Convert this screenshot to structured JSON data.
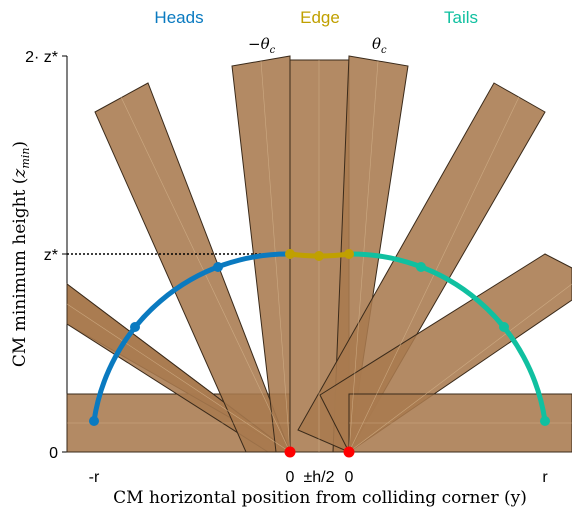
{
  "legend": {
    "heads": {
      "label": "Heads",
      "color": "#0a7ac0"
    },
    "edge": {
      "label": "Edge",
      "color": "#c0a000"
    },
    "tails": {
      "label": "Tails",
      "color": "#10c0a0"
    }
  },
  "angle_labels": {
    "neg_theta": "−θ",
    "neg_theta_sub": "c",
    "theta": "θ",
    "theta_sub": "c"
  },
  "y_axis": {
    "label": "CM minimum height (",
    "label_var": "z",
    "label_sub": "min",
    "label_close": ")",
    "ticks": [
      {
        "label": "2· z*"
      },
      {
        "label": "z*"
      },
      {
        "label": "0"
      }
    ]
  },
  "x_axis": {
    "label": "CM horizontal position from colliding corner (y)",
    "ticks": [
      {
        "label": "-r"
      },
      {
        "label": "0"
      },
      {
        "label": "±h/2"
      },
      {
        "label": "0"
      },
      {
        "label": "r"
      }
    ]
  },
  "colors": {
    "box_fill": "#a87a4f",
    "box_stroke": "#3a2a1a",
    "contact_point": "#ff0000",
    "axis": "#000000"
  }
}
